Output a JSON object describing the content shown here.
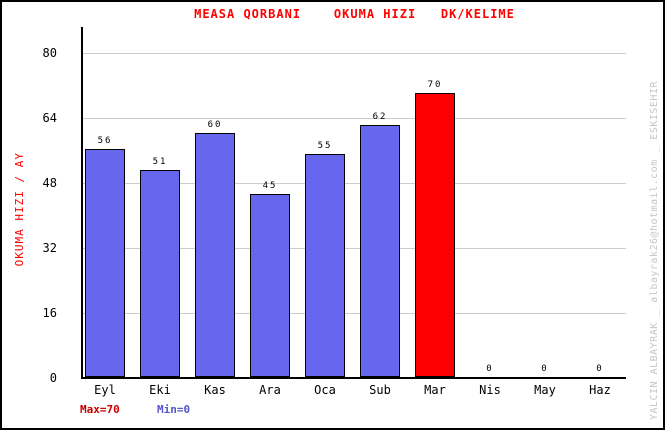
{
  "title": "MEASA QORBANI    OKUMA HIZI   DK/KELIME",
  "watermark": "YALCIN ALBAYRAK _ albayrak26@hotmail.com _ ESKISEHIR",
  "footer": {
    "max_label": "Max=70",
    "min_label": "Min=0"
  },
  "colors": {
    "title": "#ff0000",
    "y_axis_title": "#ff0000",
    "bar_blue": "#6666ee",
    "bar_red": "#ff0000",
    "max_label": "#cc0000",
    "min_label": "#5555cc",
    "gridline": "#cccccc",
    "axis": "#000000",
    "watermark": "#c6c6c6"
  },
  "chart_data": {
    "type": "bar",
    "title": "MEASA QORBANI  OKUMA HIZI  DK/KELIME",
    "categories": [
      "Eyl",
      "Eki",
      "Kas",
      "Ara",
      "Oca",
      "Sub",
      "Mar",
      "Nis",
      "May",
      "Haz"
    ],
    "values": [
      56,
      51,
      60,
      45,
      55,
      62,
      70,
      0,
      0,
      0
    ],
    "xlabel": "",
    "ylabel": "OKUMA HIZI / AY",
    "yticks": [
      0,
      16,
      32,
      48,
      64,
      80
    ],
    "ylim": [
      0,
      86.6
    ],
    "grid": true,
    "legend_position": "none",
    "bar_color": "#6666ee",
    "highlight_color": "#ff0000",
    "highlight_index": 6,
    "annotations": {
      "max": "Max=70",
      "min": "Min=0"
    }
  }
}
